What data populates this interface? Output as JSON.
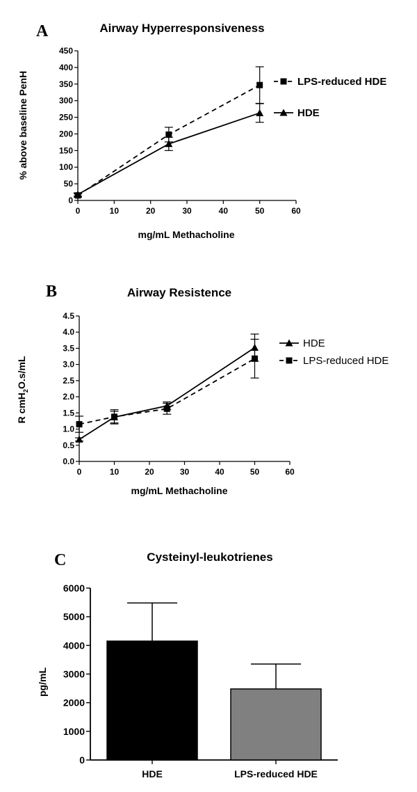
{
  "chart_data": [
    {
      "panel": "A",
      "type": "line",
      "title": "Airway Hyperresponsiveness",
      "xlabel": "mg/mL Methacholine",
      "ylabel": "% above baseline PenH",
      "xlim": [
        0,
        60
      ],
      "ylim": [
        0,
        450
      ],
      "xticks": [
        0,
        10,
        20,
        30,
        40,
        50,
        60
      ],
      "yticks": [
        0,
        50,
        100,
        150,
        200,
        250,
        300,
        350,
        400,
        450
      ],
      "legend_position": "right",
      "series": [
        {
          "name": "LPS-reduced HDE",
          "marker": "square",
          "line": "dashed",
          "x": [
            0,
            25,
            50
          ],
          "y": [
            15,
            198,
            347
          ],
          "err": [
            5,
            22,
            55
          ]
        },
        {
          "name": "HDE",
          "marker": "triangle",
          "line": "solid",
          "x": [
            0,
            25,
            50
          ],
          "y": [
            18,
            170,
            263
          ],
          "err": [
            5,
            20,
            28
          ]
        }
      ]
    },
    {
      "panel": "B",
      "type": "line",
      "title": "Airway Resistence",
      "xlabel": "mg/mL Methacholine",
      "ylabel": "R cmH2O.s/mL",
      "xlim": [
        0,
        60
      ],
      "ylim": [
        0,
        4.5
      ],
      "xticks": [
        0,
        10,
        20,
        30,
        40,
        50,
        60
      ],
      "yticks": [
        "0.0",
        "0.5",
        "1.0",
        "1.5",
        "2.0",
        "2.5",
        "3.0",
        "3.5",
        "4.0",
        "4.5"
      ],
      "legend_position": "right",
      "series": [
        {
          "name": "HDE",
          "marker": "triangle",
          "line": "solid",
          "x": [
            0,
            10,
            25,
            50
          ],
          "y": [
            0.68,
            1.37,
            1.72,
            3.52
          ],
          "err": [
            0.05,
            0.18,
            0.12,
            0.42
          ]
        },
        {
          "name": "LPS-reduced HDE",
          "marker": "square",
          "line": "dashed",
          "x": [
            0,
            10,
            25,
            50
          ],
          "y": [
            1.15,
            1.38,
            1.63,
            3.18
          ],
          "err": [
            0.25,
            0.22,
            0.17,
            0.6
          ]
        }
      ]
    },
    {
      "panel": "C",
      "type": "bar",
      "title": "Cysteinyl-leukotrienes",
      "ylabel": "pg/mL",
      "ylim": [
        0,
        6000
      ],
      "yticks": [
        0,
        1000,
        2000,
        3000,
        4000,
        5000,
        6000
      ],
      "categories": [
        "HDE",
        "LPS-reduced HDE"
      ],
      "values": [
        4150,
        2480
      ],
      "err": [
        1330,
        870
      ],
      "colors": [
        "#000000",
        "#808080"
      ]
    }
  ]
}
